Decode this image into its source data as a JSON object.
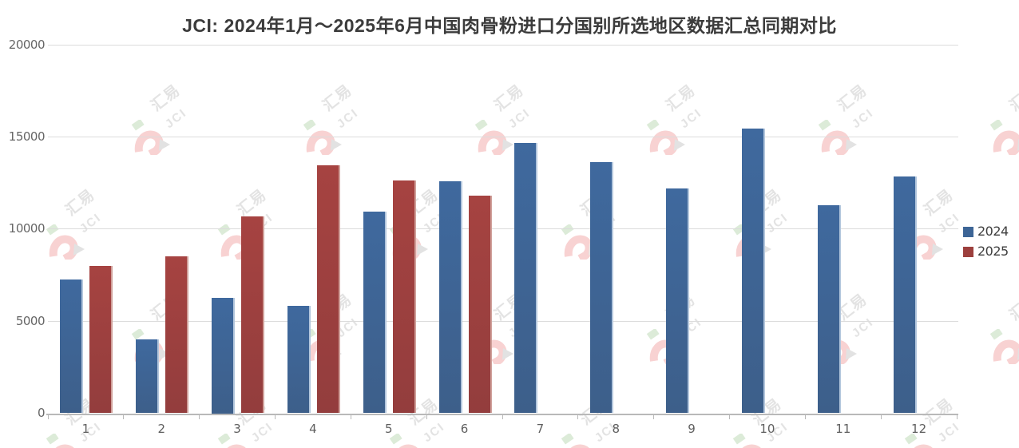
{
  "title": "JCI: 2024年1月～2025年6月中国肉骨粉进口分国别所选地区数据汇总同期对比",
  "legend": {
    "items": [
      {
        "label": "2024",
        "color": "#3d6596"
      },
      {
        "label": "2025",
        "color": "#9c3f3d"
      }
    ]
  },
  "watermark": {
    "text_primary": "汇易",
    "text_secondary": "JCI",
    "text_color": "#e3e3e3",
    "hook_color": "#f8d2d2",
    "arrow_color": "#e2e2e2",
    "square_color": "#dcebd8"
  },
  "axes": {
    "y_tick_labels": [
      "0",
      "5000",
      "10000",
      "15000",
      "20000"
    ],
    "x_tick_labels": [
      "1",
      "2",
      "3",
      "4",
      "5",
      "6",
      "7",
      "8",
      "9",
      "10",
      "11",
      "12"
    ]
  },
  "chart_data": {
    "type": "bar",
    "title": "JCI: 2024年1月～2025年6月中国肉骨粉进口分国别所选地区数据汇总同期对比",
    "categories": [
      1,
      2,
      3,
      4,
      5,
      6,
      7,
      8,
      9,
      10,
      11,
      12
    ],
    "series": [
      {
        "name": "2024",
        "color": "#3f699e",
        "color_bottom": "#3d5f8a",
        "edge_color": "#b4c7dd",
        "values": [
          7250,
          4000,
          6250,
          5850,
          10950,
          12600,
          14650,
          13650,
          12200,
          15450,
          11300,
          12850
        ]
      },
      {
        "name": "2025",
        "color": "#a64341",
        "color_bottom": "#933d3d",
        "edge_color": "#d0a09a",
        "values": [
          8000,
          8500,
          10700,
          13450,
          12650,
          11800,
          null,
          null,
          null,
          null,
          null,
          null
        ]
      }
    ],
    "xlabel": "",
    "ylabel": "",
    "ylim": [
      0,
      20000
    ],
    "yticks": [
      0,
      5000,
      10000,
      15000,
      20000
    ],
    "grid": true,
    "legend_position": "right",
    "background": "#ffffff"
  },
  "colors": {
    "grid": "#dcdcdc",
    "axis": "#b9b9b9",
    "tick_label": "#666666",
    "title": "#3b3b3b",
    "legend_text": "#3e3e3e",
    "background": "#ffffff"
  }
}
